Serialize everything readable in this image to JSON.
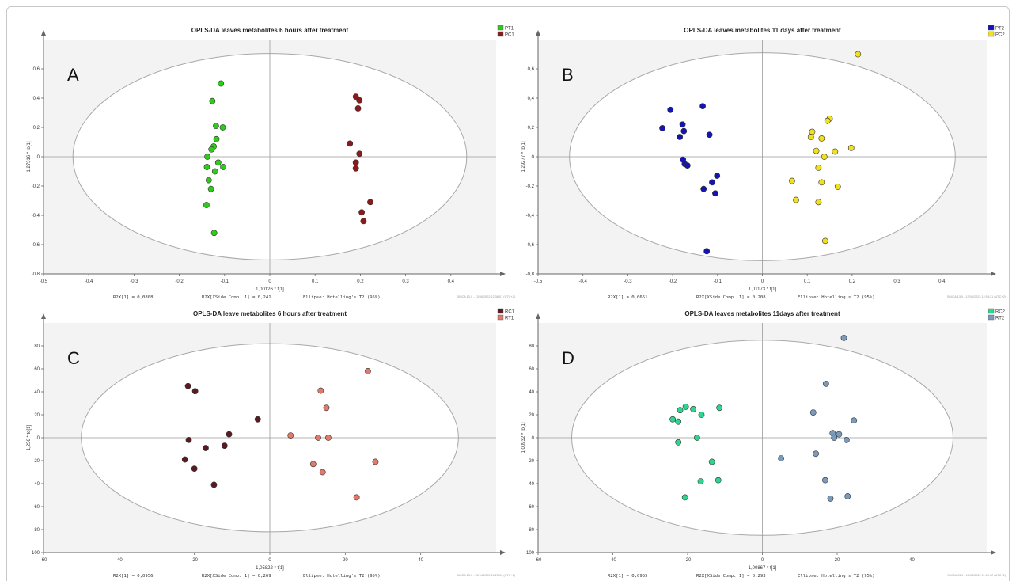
{
  "chart_data": [
    {
      "type": "scatter",
      "panel_letter": "A",
      "title": "OPLS-DA leaves metabolites 6 hours after treatment",
      "xlabel": "1,00126 * t[1]",
      "ylabel": "1,27316 * to[1]",
      "xlim": [
        -0.5,
        0.5
      ],
      "ylim": [
        -0.8,
        0.8
      ],
      "xticks": [
        -0.5,
        -0.4,
        -0.3,
        -0.2,
        -0.1,
        0,
        0.1,
        0.2,
        0.3,
        0.4
      ],
      "yticks": [
        -0.8,
        -0.6,
        -0.4,
        -0.2,
        0,
        0.2,
        0.4,
        0.6
      ],
      "xtick_labels": [
        "-0,5",
        "-0,4",
        "-0,3",
        "-0,2",
        "-0,1",
        "0",
        "0,1",
        "0,2",
        "0,3",
        "0,4"
      ],
      "ytick_labels": [
        "-0,8",
        "-0,6",
        "-0,4",
        "-0,2",
        "0",
        "0,2",
        "0,4",
        "0,6"
      ],
      "ellipse": {
        "rx": 0.435,
        "ry": 0.705
      },
      "footer": {
        "r2x": "R2X[1] = 0,0808",
        "r2x_side": "R2X[XSide Comp. 1] = 0,241",
        "ellipse_note": "Ellipse: Hotelling's T2 (95%)",
        "timestamp": "SIMCA 13.0 - 13/06/2022 12:38:07 (UTC+2)"
      },
      "series": [
        {
          "name": "PT1",
          "color": "#2ecc1a",
          "points": [
            [
              -0.108,
              0.5
            ],
            [
              -0.127,
              0.38
            ],
            [
              -0.119,
              0.21
            ],
            [
              -0.104,
              0.2
            ],
            [
              -0.118,
              0.12
            ],
            [
              -0.124,
              0.07
            ],
            [
              -0.129,
              0.05
            ],
            [
              -0.138,
              0.0
            ],
            [
              -0.114,
              -0.04
            ],
            [
              -0.103,
              -0.07
            ],
            [
              -0.139,
              -0.07
            ],
            [
              -0.121,
              -0.1
            ],
            [
              -0.135,
              -0.16
            ],
            [
              -0.13,
              -0.22
            ],
            [
              -0.14,
              -0.33
            ],
            [
              -0.123,
              -0.52
            ]
          ]
        },
        {
          "name": "PC1",
          "color": "#8b1a1a",
          "points": [
            [
              0.19,
              0.41
            ],
            [
              0.198,
              0.385
            ],
            [
              0.195,
              0.33
            ],
            [
              0.177,
              0.09
            ],
            [
              0.198,
              0.02
            ],
            [
              0.19,
              -0.04
            ],
            [
              0.19,
              -0.08
            ],
            [
              0.222,
              -0.31
            ],
            [
              0.203,
              -0.38
            ],
            [
              0.207,
              -0.44
            ]
          ]
        }
      ]
    },
    {
      "type": "scatter",
      "panel_letter": "B",
      "title": "OPLS-DA leaves metabolites 11 days after treatment",
      "xlabel": "1,01173 * t[1]",
      "ylabel": "1,29277 * to[1]",
      "xlim": [
        -0.5,
        0.5
      ],
      "ylim": [
        -0.8,
        0.8
      ],
      "xticks": [
        -0.5,
        -0.4,
        -0.3,
        -0.2,
        -0.1,
        0,
        0.1,
        0.2,
        0.3,
        0.4
      ],
      "yticks": [
        -0.8,
        -0.6,
        -0.4,
        -0.2,
        0,
        0.2,
        0.4,
        0.6
      ],
      "xtick_labels": [
        "-0,5",
        "-0,4",
        "-0,3",
        "-0,2",
        "-0,1",
        "0",
        "0,1",
        "0,2",
        "0,3",
        "0,4"
      ],
      "ytick_labels": [
        "-0,8",
        "-0,6",
        "-0,4",
        "-0,2",
        "0",
        "0,2",
        "0,4",
        "0,6"
      ],
      "ellipse": {
        "rx": 0.43,
        "ry": 0.71
      },
      "footer": {
        "r2x": "R2X[1] = 0,0651",
        "r2x_side": "R2X[XSide Comp. 1] = 0,208",
        "ellipse_note": "Ellipse: Hotelling's T2 (95%)",
        "timestamp": "SIMCA 13.0 - 13/06/2022 12:03:21 (UTC+2)"
      },
      "series": [
        {
          "name": "PT2",
          "color": "#1414b4",
          "points": [
            [
              -0.205,
              0.32
            ],
            [
              -0.133,
              0.345
            ],
            [
              -0.178,
              0.22
            ],
            [
              -0.223,
              0.195
            ],
            [
              -0.175,
              0.175
            ],
            [
              -0.184,
              0.135
            ],
            [
              -0.118,
              0.15
            ],
            [
              -0.177,
              -0.02
            ],
            [
              -0.173,
              -0.05
            ],
            [
              -0.167,
              -0.06
            ],
            [
              -0.101,
              -0.13
            ],
            [
              -0.112,
              -0.175
            ],
            [
              -0.131,
              -0.22
            ],
            [
              -0.105,
              -0.25
            ],
            [
              -0.124,
              -0.645
            ]
          ]
        },
        {
          "name": "PC2",
          "color": "#f0e020",
          "points": [
            [
              0.213,
              0.7
            ],
            [
              0.15,
              0.26
            ],
            [
              0.145,
              0.245
            ],
            [
              0.111,
              0.17
            ],
            [
              0.108,
              0.135
            ],
            [
              0.132,
              0.125
            ],
            [
              0.198,
              0.06
            ],
            [
              0.12,
              0.04
            ],
            [
              0.162,
              0.035
            ],
            [
              0.138,
              0.0
            ],
            [
              0.125,
              -0.075
            ],
            [
              0.066,
              -0.165
            ],
            [
              0.132,
              -0.175
            ],
            [
              0.168,
              -0.205
            ],
            [
              0.075,
              -0.295
            ],
            [
              0.125,
              -0.31
            ],
            [
              0.14,
              -0.575
            ]
          ]
        }
      ]
    },
    {
      "type": "scatter",
      "panel_letter": "C",
      "title": "OPLS-DA leave metabolites 6 hours after treatment",
      "xlabel": "1,05822 * t[1]",
      "ylabel": "1,256 * to[1]",
      "xlim": [
        -60,
        60
      ],
      "ylim": [
        -100,
        100
      ],
      "xticks": [
        -60,
        -40,
        -20,
        0,
        20,
        40
      ],
      "yticks": [
        -100,
        -80,
        -60,
        -40,
        -20,
        0,
        20,
        40,
        60,
        80
      ],
      "xtick_labels": [
        "-60",
        "-40",
        "-20",
        "0",
        "20",
        "40"
      ],
      "ytick_labels": [
        "-100",
        "-80",
        "-60",
        "-40",
        "-20",
        "0",
        "20",
        "40",
        "60",
        "80"
      ],
      "ellipse": {
        "rx": 50,
        "ry": 82
      },
      "footer": {
        "r2x": "R2X[1] = 0,0956",
        "r2x_side": "R2X[XSide Comp. 1] = 0,269",
        "ellipse_note": "Ellipse: Hotelling's T2 (95%)",
        "timestamp": "SIMCA 13.0 - 22/04/2022 15:23:00 (UTC+2)"
      },
      "series": [
        {
          "name": "RC1",
          "color": "#5a1a22",
          "points": [
            [
              -21.7,
              45
            ],
            [
              -19.8,
              40.5
            ],
            [
              -21.5,
              -2
            ],
            [
              -17,
              -9
            ],
            [
              -22.5,
              -19
            ],
            [
              -20,
              -27
            ],
            [
              -12,
              -7
            ],
            [
              -10.8,
              3
            ],
            [
              -14.8,
              -41
            ],
            [
              -3.2,
              16
            ]
          ]
        },
        {
          "name": "RT1",
          "color": "#e07a6a",
          "points": [
            [
              26,
              58
            ],
            [
              13.5,
              41
            ],
            [
              15,
              26
            ],
            [
              5.5,
              2
            ],
            [
              12.8,
              0
            ],
            [
              15.5,
              0
            ],
            [
              28,
              -21
            ],
            [
              11.5,
              -23
            ],
            [
              14,
              -30
            ],
            [
              23,
              -52
            ]
          ]
        }
      ]
    },
    {
      "type": "scatter",
      "panel_letter": "D",
      "title": "OPLS-DA leaves metabolites 11days after treatment",
      "xlabel": "1,00867 * t[1]",
      "ylabel": "1,00932 * to[1]",
      "xlim": [
        -60,
        60
      ],
      "ylim": [
        -100,
        100
      ],
      "xticks": [
        -60,
        -40,
        -20,
        0,
        20,
        40
      ],
      "yticks": [
        -100,
        -80,
        -60,
        -40,
        -20,
        0,
        20,
        40,
        60,
        80
      ],
      "xtick_labels": [
        "-60",
        "-40",
        "-20",
        "0",
        "20",
        "40"
      ],
      "ytick_labels": [
        "-100",
        "-80",
        "-60",
        "-40",
        "-20",
        "0",
        "20",
        "40",
        "60",
        "80"
      ],
      "ellipse": {
        "rx": 51,
        "ry": 85
      },
      "footer": {
        "r2x": "R2X[1] = 0,0955",
        "r2x_side": "R2X[XSide Comp. 1] = 0,293",
        "ellipse_note": "Ellipse: Hotelling's T2 (95%)",
        "timestamp": "SIMCA 13.0 - 16/04/2022 11:18:12 (UTC+2)"
      },
      "series": [
        {
          "name": "RC2",
          "color": "#2fd48f",
          "points": [
            [
              -20.5,
              27
            ],
            [
              -18.5,
              25
            ],
            [
              -22,
              24
            ],
            [
              -11.5,
              26
            ],
            [
              -24,
              16
            ],
            [
              -22.5,
              14
            ],
            [
              -16.3,
              20
            ],
            [
              -17.5,
              0
            ],
            [
              -22.5,
              -4
            ],
            [
              -13.5,
              -21
            ],
            [
              -16.5,
              -38
            ],
            [
              -11.8,
              -37
            ],
            [
              -20.7,
              -52
            ]
          ]
        },
        {
          "name": "RT2",
          "color": "#7b9bbd",
          "points": [
            [
              21.8,
              87
            ],
            [
              17,
              47
            ],
            [
              13.6,
              22
            ],
            [
              24.5,
              15
            ],
            [
              18.8,
              4
            ],
            [
              20.5,
              3
            ],
            [
              19.2,
              0
            ],
            [
              22.5,
              -2
            ],
            [
              5,
              -18
            ],
            [
              14.3,
              -14
            ],
            [
              16.8,
              -37
            ],
            [
              18.2,
              -53
            ],
            [
              22.8,
              -51
            ]
          ]
        }
      ]
    }
  ]
}
